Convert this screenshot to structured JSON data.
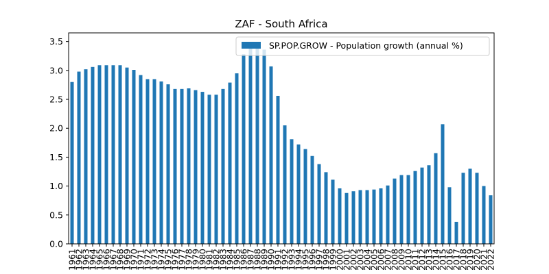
{
  "chart_data": {
    "type": "bar",
    "title": "ZAF - South Africa",
    "xlabel": "",
    "ylabel": "",
    "ylim": [
      0,
      3.65
    ],
    "yticks": [
      0.0,
      0.5,
      1.0,
      1.5,
      2.0,
      2.5,
      3.0,
      3.5
    ],
    "ytick_labels": [
      "0.0",
      "0.5",
      "1.0",
      "1.5",
      "2.0",
      "2.5",
      "3.0",
      "3.5"
    ],
    "legend_position": "top-right",
    "grid": false,
    "bar_color": "#1f77b4",
    "categories": [
      "1961",
      "1962",
      "1963",
      "1964",
      "1965",
      "1966",
      "1967",
      "1968",
      "1969",
      "1970",
      "1971",
      "1972",
      "1973",
      "1974",
      "1975",
      "1976",
      "1977",
      "1978",
      "1979",
      "1980",
      "1981",
      "1982",
      "1983",
      "1984",
      "1985",
      "1986",
      "1987",
      "1988",
      "1989",
      "1990",
      "1991",
      "1992",
      "1993",
      "1994",
      "1995",
      "1996",
      "1997",
      "1998",
      "1999",
      "2000",
      "2001",
      "2002",
      "2003",
      "2004",
      "2005",
      "2006",
      "2007",
      "2008",
      "2009",
      "2010",
      "2011",
      "2012",
      "2013",
      "2014",
      "2015",
      "2016",
      "2017",
      "2018",
      "2019",
      "2020",
      "2021",
      "2022"
    ],
    "series": [
      {
        "name": "SP.POP.GROW - Population growth (annual %)",
        "values": [
          2.8,
          2.98,
          3.02,
          3.06,
          3.09,
          3.09,
          3.09,
          3.09,
          3.05,
          3.01,
          2.92,
          2.85,
          2.85,
          2.81,
          2.76,
          2.68,
          2.68,
          2.69,
          2.66,
          2.63,
          2.58,
          2.58,
          2.68,
          2.79,
          2.95,
          3.28,
          3.38,
          3.38,
          3.36,
          3.07,
          2.56,
          2.05,
          1.81,
          1.72,
          1.64,
          1.52,
          1.38,
          1.24,
          1.11,
          0.96,
          0.88,
          0.91,
          0.93,
          0.93,
          0.94,
          0.96,
          1.01,
          1.13,
          1.19,
          1.19,
          1.26,
          1.32,
          1.36,
          1.57,
          2.07,
          0.98,
          0.38,
          1.23,
          1.3,
          1.23,
          1.0,
          0.84
        ]
      }
    ]
  }
}
